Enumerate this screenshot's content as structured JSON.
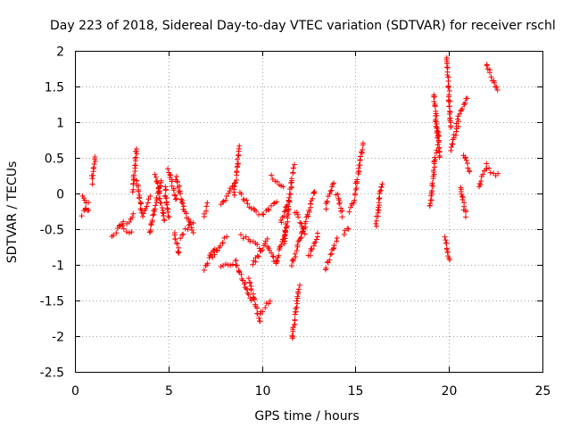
{
  "chart_data": {
    "type": "scatter",
    "title": "Day 223 of 2018, Sidereal Day-to-day VTEC variation (SDTVAR) for receiver rschl",
    "xlabel": "GPS time / hours",
    "ylabel": "SDTVAR / TECUs",
    "xlim": [
      0,
      25
    ],
    "ylim": [
      -2.5,
      2
    ],
    "xticks": [
      0,
      5,
      10,
      15,
      20,
      25
    ],
    "xtick_labels": [
      "0",
      "5",
      "10",
      "15",
      "20",
      "25"
    ],
    "yticks": [
      2,
      1.5,
      1,
      0.5,
      0,
      -0.5,
      -1,
      -1.5,
      -2,
      -2.5
    ],
    "ytick_labels": [
      "2",
      "1.5",
      "1",
      "0.5",
      "0",
      "-0.5",
      "-1",
      "-1.5",
      "-2",
      "-2.5"
    ],
    "grid": true,
    "marker": "plus",
    "color": "#ff0000",
    "segments": [
      {
        "x": [
          0.4,
          0.7
        ],
        "y": [
          -0.05,
          -0.25
        ]
      },
      {
        "x": [
          0.4,
          0.7
        ],
        "y": [
          -0.3,
          -0.15
        ]
      },
      {
        "x": [
          0.9,
          1.1
        ],
        "y": [
          0.15,
          0.5
        ]
      },
      {
        "x": [
          2.0,
          2.6
        ],
        "y": [
          -0.6,
          -0.4
        ]
      },
      {
        "x": [
          2.4,
          3.0
        ],
        "y": [
          -0.45,
          -0.55
        ]
      },
      {
        "x": [
          2.8,
          3.1
        ],
        "y": [
          -0.45,
          -0.3
        ]
      },
      {
        "x": [
          3.1,
          3.3
        ],
        "y": [
          0.05,
          0.65
        ]
      },
      {
        "x": [
          3.3,
          3.6
        ],
        "y": [
          0.2,
          -0.3
        ]
      },
      {
        "x": [
          3.6,
          4.0
        ],
        "y": [
          -0.3,
          -0.05
        ]
      },
      {
        "x": [
          4.0,
          4.6
        ],
        "y": [
          -0.55,
          0.2
        ]
      },
      {
        "x": [
          4.3,
          4.8
        ],
        "y": [
          0.25,
          -0.4
        ]
      },
      {
        "x": [
          4.8,
          5.0
        ],
        "y": [
          0.1,
          -0.35
        ]
      },
      {
        "x": [
          5.0,
          5.4
        ],
        "y": [
          0.35,
          -0.1
        ]
      },
      {
        "x": [
          5.4,
          5.8
        ],
        "y": [
          0.25,
          -0.2
        ]
      },
      {
        "x": [
          5.3,
          5.6
        ],
        "y": [
          -0.55,
          -0.85
        ]
      },
      {
        "x": [
          5.6,
          6.3
        ],
        "y": [
          -0.6,
          -0.4
        ]
      },
      {
        "x": [
          5.8,
          6.3
        ],
        "y": [
          -0.2,
          -0.55
        ]
      },
      {
        "x": [
          6.9,
          7.1
        ],
        "y": [
          -0.3,
          -0.15
        ]
      },
      {
        "x": [
          6.9,
          7.5
        ],
        "y": [
          -1.05,
          -0.75
        ]
      },
      {
        "x": [
          7.3,
          8.1
        ],
        "y": [
          -0.9,
          -0.6
        ]
      },
      {
        "x": [
          7.8,
          8.5
        ],
        "y": [
          -0.15,
          0.1
        ]
      },
      {
        "x": [
          7.8,
          8.6
        ],
        "y": [
          -1.05,
          -0.95
        ]
      },
      {
        "x": [
          8.5,
          8.8
        ],
        "y": [
          0.0,
          0.65
        ]
      },
      {
        "x": [
          8.6,
          9.4
        ],
        "y": [
          -0.95,
          -1.5
        ]
      },
      {
        "x": [
          8.8,
          9.8
        ],
        "y": [
          0.0,
          -0.3
        ]
      },
      {
        "x": [
          8.9,
          9.9
        ],
        "y": [
          -0.6,
          -0.75
        ]
      },
      {
        "x": [
          9.3,
          9.9
        ],
        "y": [
          -1.2,
          -1.8
        ]
      },
      {
        "x": [
          9.5,
          10.3
        ],
        "y": [
          -1.0,
          -0.65
        ]
      },
      {
        "x": [
          9.9,
          10.4
        ],
        "y": [
          -1.7,
          -1.5
        ]
      },
      {
        "x": [
          10.0,
          10.8
        ],
        "y": [
          -0.3,
          -0.1
        ]
      },
      {
        "x": [
          10.3,
          10.8
        ],
        "y": [
          -0.75,
          -1.0
        ]
      },
      {
        "x": [
          10.5,
          11.1
        ],
        "y": [
          0.25,
          0.1
        ]
      },
      {
        "x": [
          10.8,
          11.3
        ],
        "y": [
          -0.95,
          -0.45
        ]
      },
      {
        "x": [
          11.0,
          11.4
        ],
        "y": [
          -0.4,
          -0.1
        ]
      },
      {
        "x": [
          11.2,
          11.7
        ],
        "y": [
          -0.7,
          0.4
        ]
      },
      {
        "x": [
          11.6,
          12.0
        ],
        "y": [
          -2.05,
          -1.3
        ]
      },
      {
        "x": [
          11.6,
          12.2
        ],
        "y": [
          -1.0,
          -0.5
        ]
      },
      {
        "x": [
          11.8,
          12.3
        ],
        "y": [
          -0.25,
          -0.55
        ]
      },
      {
        "x": [
          12.2,
          12.8
        ],
        "y": [
          -0.55,
          0.05
        ]
      },
      {
        "x": [
          12.5,
          13.0
        ],
        "y": [
          -0.9,
          -0.55
        ]
      },
      {
        "x": [
          13.4,
          14.0
        ],
        "y": [
          -1.05,
          -0.65
        ]
      },
      {
        "x": [
          13.4,
          13.8
        ],
        "y": [
          -0.2,
          0.15
        ]
      },
      {
        "x": [
          14.0,
          14.3
        ],
        "y": [
          0.0,
          -0.3
        ]
      },
      {
        "x": [
          14.4,
          14.6
        ],
        "y": [
          -0.55,
          -0.5
        ]
      },
      {
        "x": [
          14.7,
          15.0
        ],
        "y": [
          -0.25,
          0.0
        ]
      },
      {
        "x": [
          15.0,
          15.4
        ],
        "y": [
          0.05,
          0.7
        ]
      },
      {
        "x": [
          16.1,
          16.4
        ],
        "y": [
          -0.45,
          0.15
        ]
      },
      {
        "x": [
          19.0,
          19.3
        ],
        "y": [
          -0.2,
          0.6
        ]
      },
      {
        "x": [
          19.2,
          19.5
        ],
        "y": [
          1.4,
          0.5
        ]
      },
      {
        "x": [
          19.3,
          19.5
        ],
        "y": [
          1.0,
          0.7
        ]
      },
      {
        "x": [
          19.9,
          20.1
        ],
        "y": [
          1.9,
          0.9
        ]
      },
      {
        "x": [
          19.8,
          20.0
        ],
        "y": [
          -0.6,
          -0.95
        ]
      },
      {
        "x": [
          20.1,
          20.5
        ],
        "y": [
          0.6,
          1.0
        ]
      },
      {
        "x": [
          20.4,
          21.0
        ],
        "y": [
          1.0,
          1.35
        ]
      },
      {
        "x": [
          20.6,
          20.9
        ],
        "y": [
          0.1,
          -0.3
        ]
      },
      {
        "x": [
          20.8,
          21.1
        ],
        "y": [
          0.55,
          0.3
        ]
      },
      {
        "x": [
          21.6,
          22.0
        ],
        "y": [
          0.1,
          0.4
        ]
      },
      {
        "x": [
          22.0,
          22.6
        ],
        "y": [
          0.35,
          0.25
        ]
      },
      {
        "x": [
          22.0,
          22.6
        ],
        "y": [
          1.8,
          1.45
        ]
      }
    ]
  }
}
